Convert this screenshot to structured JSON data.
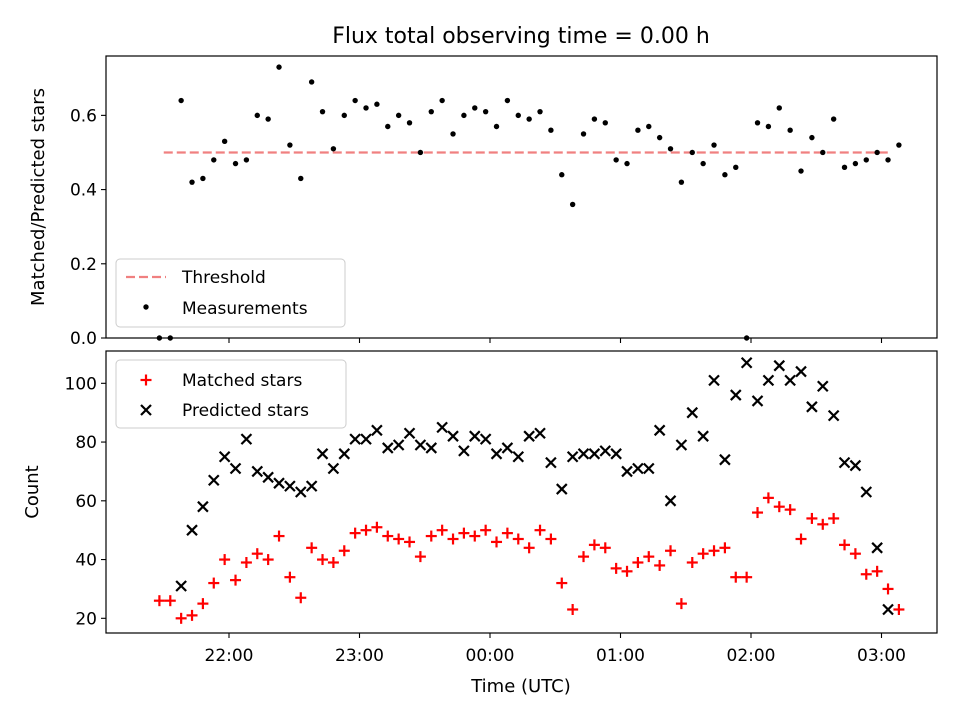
{
  "figure": {
    "title": "Flux total observing time = 0.00 h"
  },
  "chart_data": [
    {
      "type": "scatter",
      "panel": "top",
      "title": "Flux total observing time = 0.00 h",
      "xlabel": "",
      "ylabel": "Matched/Predicted stars",
      "ylim": [
        0,
        0.76
      ],
      "yticks": [
        0.0,
        0.2,
        0.4,
        0.6
      ],
      "ytick_labels": [
        "0.0",
        "0.2",
        "0.4",
        "0.6"
      ],
      "legend": {
        "placement": "lower-left",
        "entries": [
          "Threshold",
          "Measurements"
        ]
      },
      "threshold": {
        "name": "Threshold",
        "value": 0.5,
        "x_start": "21:30",
        "x_end": "03:03",
        "color": "#f08080",
        "style": "dashed"
      },
      "series": [
        {
          "name": "Measurements",
          "color": "#000000",
          "marker": "dot",
          "x": [
            "21:28",
            "21:33",
            "21:38",
            "21:43",
            "21:48",
            "21:53",
            "21:58",
            "22:03",
            "22:08",
            "22:13",
            "22:18",
            "22:23",
            "22:28",
            "22:33",
            "22:38",
            "22:43",
            "22:48",
            "22:53",
            "22:58",
            "23:03",
            "23:08",
            "23:13",
            "23:18",
            "23:23",
            "23:28",
            "23:33",
            "23:38",
            "23:43",
            "23:48",
            "23:53",
            "23:58",
            "00:03",
            "00:08",
            "00:13",
            "00:18",
            "00:23",
            "00:28",
            "00:33",
            "00:38",
            "00:43",
            "00:48",
            "00:53",
            "00:58",
            "01:03",
            "01:08",
            "01:13",
            "01:18",
            "01:23",
            "01:28",
            "01:33",
            "01:38",
            "01:43",
            "01:48",
            "01:53",
            "01:58",
            "02:03",
            "02:08",
            "02:13",
            "02:18",
            "02:23",
            "02:28",
            "02:33",
            "02:38",
            "02:43",
            "02:48",
            "02:53",
            "02:58",
            "03:03",
            "03:08"
          ],
          "y": [
            0.0,
            0.0,
            0.64,
            0.42,
            0.43,
            0.48,
            0.53,
            0.47,
            0.48,
            0.6,
            0.59,
            0.73,
            0.52,
            0.43,
            0.69,
            0.61,
            0.51,
            0.6,
            0.64,
            0.62,
            0.63,
            0.57,
            0.6,
            0.58,
            0.5,
            0.61,
            0.64,
            0.55,
            0.6,
            0.62,
            0.61,
            0.57,
            0.64,
            0.6,
            0.59,
            0.61,
            0.56,
            0.44,
            0.36,
            0.55,
            0.59,
            0.58,
            0.48,
            0.47,
            0.56,
            0.57,
            0.54,
            0.51,
            0.42,
            0.5,
            0.47,
            0.52,
            0.44,
            0.46,
            0.0,
            0.58,
            0.57,
            0.62,
            0.56,
            0.45,
            0.54,
            0.5,
            0.59,
            0.46,
            0.47,
            0.48,
            0.5,
            0.48,
            0.52
          ]
        }
      ]
    },
    {
      "type": "scatter",
      "panel": "bottom",
      "xlabel": "Time (UTC)",
      "ylabel": "Count",
      "ylim": [
        15,
        111
      ],
      "yticks": [
        20,
        40,
        60,
        80,
        100
      ],
      "ytick_labels": [
        "20",
        "40",
        "60",
        "80",
        "100"
      ],
      "xticks": [
        "22:00",
        "23:00",
        "00:00",
        "01:00",
        "02:00",
        "03:00"
      ],
      "legend": {
        "placement": "top-left",
        "entries": [
          "Matched stars",
          "Predicted stars"
        ]
      },
      "series": [
        {
          "name": "Matched stars",
          "color": "#ff0000",
          "marker": "plus",
          "x": [
            "21:28",
            "21:33",
            "21:38",
            "21:43",
            "21:48",
            "21:53",
            "21:58",
            "22:03",
            "22:08",
            "22:13",
            "22:18",
            "22:23",
            "22:28",
            "22:33",
            "22:38",
            "22:43",
            "22:48",
            "22:53",
            "22:58",
            "23:03",
            "23:08",
            "23:13",
            "23:18",
            "23:23",
            "23:28",
            "23:33",
            "23:38",
            "23:43",
            "23:48",
            "23:53",
            "23:58",
            "00:03",
            "00:08",
            "00:13",
            "00:18",
            "00:23",
            "00:28",
            "00:33",
            "00:38",
            "00:43",
            "00:48",
            "00:53",
            "00:58",
            "01:03",
            "01:08",
            "01:13",
            "01:18",
            "01:23",
            "01:28",
            "01:33",
            "01:38",
            "01:43",
            "01:48",
            "01:53",
            "01:58",
            "02:03",
            "02:08",
            "02:13",
            "02:18",
            "02:23",
            "02:28",
            "02:33",
            "02:38",
            "02:43",
            "02:48",
            "02:53",
            "02:58",
            "03:03",
            "03:08"
          ],
          "y": [
            26,
            26,
            20,
            21,
            25,
            32,
            40,
            33,
            39,
            42,
            40,
            48,
            34,
            27,
            44,
            40,
            39,
            43,
            49,
            50,
            51,
            48,
            47,
            46,
            41,
            48,
            50,
            47,
            49,
            48,
            50,
            46,
            49,
            47,
            44,
            50,
            47,
            32,
            23,
            41,
            45,
            44,
            37,
            36,
            39,
            41,
            38,
            43,
            25,
            39,
            42,
            43,
            44,
            34,
            34,
            56,
            61,
            58,
            57,
            47,
            54,
            52,
            54,
            45,
            42,
            35,
            36,
            30,
            23
          ]
        },
        {
          "name": "Predicted stars",
          "color": "#000000",
          "marker": "x",
          "x": [
            "21:38",
            "21:43",
            "21:48",
            "21:53",
            "21:58",
            "22:03",
            "22:08",
            "22:13",
            "22:18",
            "22:23",
            "22:28",
            "22:33",
            "22:38",
            "22:43",
            "22:48",
            "22:53",
            "22:58",
            "23:03",
            "23:08",
            "23:13",
            "23:18",
            "23:23",
            "23:28",
            "23:33",
            "23:38",
            "23:43",
            "23:48",
            "23:53",
            "23:58",
            "00:03",
            "00:08",
            "00:13",
            "00:18",
            "00:23",
            "00:28",
            "00:33",
            "00:38",
            "00:43",
            "00:48",
            "00:53",
            "00:58",
            "01:03",
            "01:08",
            "01:13",
            "01:18",
            "01:23",
            "01:28",
            "01:33",
            "01:38",
            "01:43",
            "01:48",
            "01:53",
            "01:58",
            "02:03",
            "02:08",
            "02:13",
            "02:18",
            "02:23",
            "02:28",
            "02:33",
            "02:38",
            "02:43",
            "02:48",
            "02:53",
            "02:58",
            "03:03"
          ],
          "y": [
            31,
            50,
            58,
            67,
            75,
            71,
            81,
            70,
            68,
            66,
            65,
            63,
            65,
            76,
            71,
            76,
            81,
            81,
            84,
            78,
            79,
            83,
            79,
            78,
            85,
            82,
            77,
            82,
            81,
            76,
            78,
            75,
            82,
            83,
            73,
            64,
            75,
            76,
            76,
            77,
            76,
            70,
            71,
            71,
            84,
            60,
            79,
            90,
            82,
            101,
            74,
            96,
            107,
            94,
            101,
            106,
            101,
            104,
            92,
            99,
            89,
            73,
            72,
            63,
            44,
            23
          ]
        }
      ]
    }
  ]
}
